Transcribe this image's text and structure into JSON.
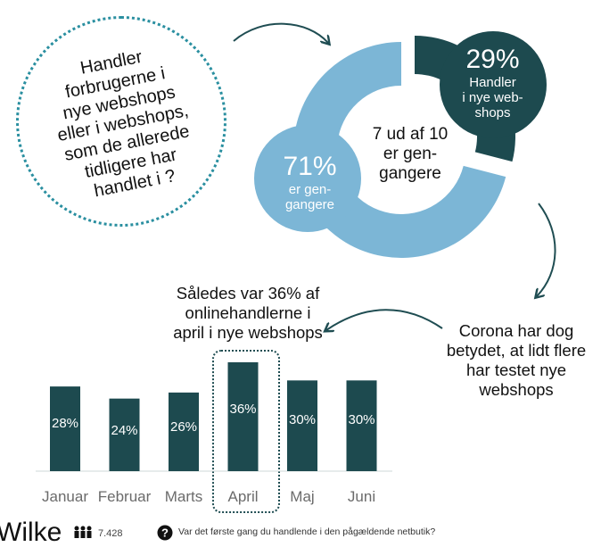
{
  "question": "Handler\nforbrugerne i\nnye webshops\neller i webshops,\nsom de allerede\ntidligere har\nhandlet i ?",
  "donut": {
    "center_text": "7 ud af 10\ner gen-\ngangere",
    "segments": [
      {
        "value": 29,
        "pct_label": "29%",
        "label": "Handler\ni nye web-\nshops",
        "color": "#1d4a4f"
      },
      {
        "value": 71,
        "pct_label": "71%",
        "label": "er gen-\ngangere",
        "color": "#7cb6d6"
      }
    ]
  },
  "callout_bar": "Således var 36% af\nonlinehandlerne i\napril i nye webshops",
  "callout_corona": "Corona har dog\nbetydet, at lidt flere\nhar testet nye\nwebshops",
  "chart_data": [
    {
      "type": "pie",
      "categories": [
        "Handler i nye webshops",
        "er gengangere"
      ],
      "values": [
        29,
        71
      ],
      "title": "7 ud af 10 er gengangere"
    },
    {
      "type": "bar",
      "categories": [
        "Januar",
        "Februar",
        "Marts",
        "April",
        "Maj",
        "Juni"
      ],
      "values": [
        28,
        24,
        26,
        36,
        30,
        30
      ],
      "value_labels": [
        "28%",
        "24%",
        "26%",
        "36%",
        "30%",
        "30%"
      ],
      "highlight": "April",
      "ylim": [
        0,
        40
      ],
      "bar_color": "#1d4a4f"
    }
  ],
  "footer": {
    "brand": "Wilke",
    "respondents": "7.428",
    "question": "Var det første gang du handlende i den pågældende netbutik?"
  },
  "colors": {
    "dark": "#1d4a4f",
    "light": "#7cb6d6",
    "accent": "#2a8fa0"
  }
}
